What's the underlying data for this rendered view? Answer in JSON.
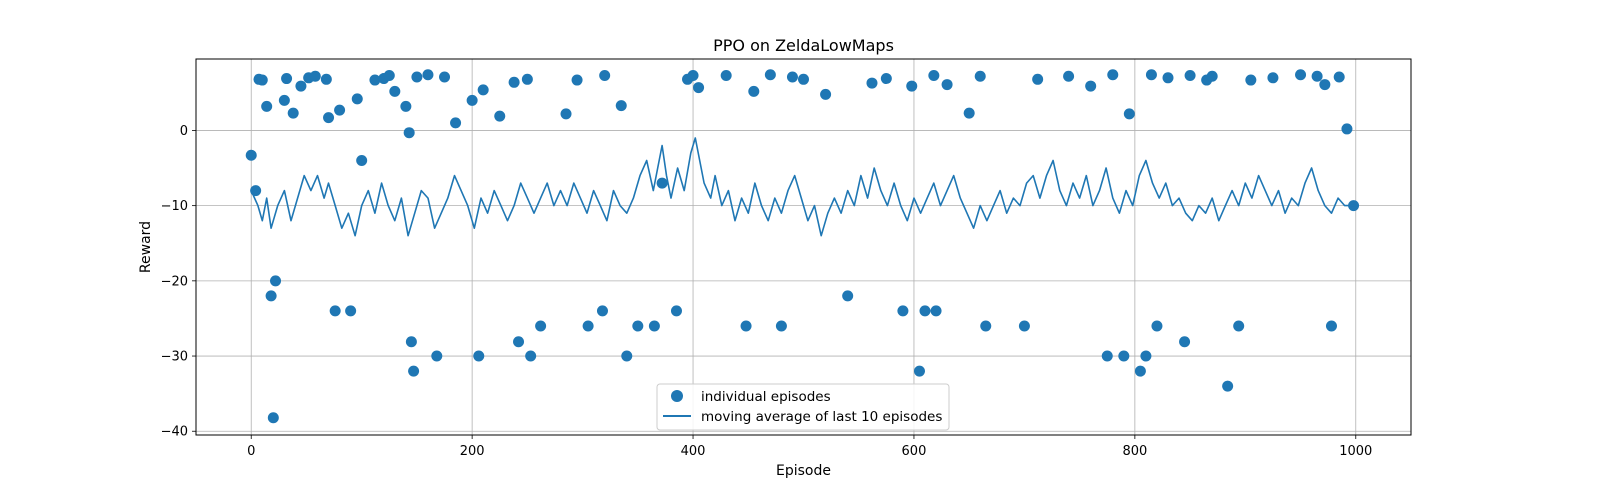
{
  "chart_data": {
    "type": "scatter",
    "title": "PPO on ZeldaLowMaps",
    "xlabel": "Episode",
    "ylabel": "Reward",
    "xlim": [
      -50,
      1050
    ],
    "ylim": [
      -40.5,
      9.5
    ],
    "xticks": [
      0,
      200,
      400,
      600,
      800,
      1000
    ],
    "yticks": [
      -40,
      -30,
      -20,
      -10,
      0
    ],
    "grid": true,
    "legend_position": "bottom-center",
    "color": "#1f77b4",
    "series": [
      {
        "name": "individual episodes",
        "kind": "scatter",
        "episode_count": 1000,
        "points": [
          [
            0,
            -3.3
          ],
          [
            4,
            -8
          ],
          [
            7,
            6.8
          ],
          [
            10,
            6.7
          ],
          [
            14,
            3.2
          ],
          [
            18,
            -22
          ],
          [
            20,
            -38.2
          ],
          [
            22,
            -20
          ],
          [
            30,
            4
          ],
          [
            32,
            6.9
          ],
          [
            38,
            2.3
          ],
          [
            45,
            5.9
          ],
          [
            52,
            7.0
          ],
          [
            58,
            7.2
          ],
          [
            68,
            6.8
          ],
          [
            70,
            1.7
          ],
          [
            76,
            -24
          ],
          [
            80,
            2.7
          ],
          [
            90,
            -24
          ],
          [
            96,
            4.2
          ],
          [
            100,
            -4.0
          ],
          [
            112,
            6.7
          ],
          [
            120,
            6.9
          ],
          [
            125,
            7.3
          ],
          [
            130,
            5.2
          ],
          [
            140,
            3.2
          ],
          [
            143,
            -0.3
          ],
          [
            145,
            -28.1
          ],
          [
            147,
            -32
          ],
          [
            150,
            7.1
          ],
          [
            160,
            7.4
          ],
          [
            168,
            -30
          ],
          [
            175,
            7.1
          ],
          [
            185,
            1.0
          ],
          [
            200,
            4.0
          ],
          [
            206,
            -30
          ],
          [
            210,
            5.4
          ],
          [
            225,
            1.9
          ],
          [
            238,
            6.4
          ],
          [
            242,
            -28.1
          ],
          [
            250,
            6.8
          ],
          [
            253,
            -30
          ],
          [
            262,
            -26
          ],
          [
            285,
            2.2
          ],
          [
            295,
            6.7
          ],
          [
            305,
            -26
          ],
          [
            318,
            -24
          ],
          [
            320,
            7.3
          ],
          [
            335,
            3.3
          ],
          [
            340,
            -30
          ],
          [
            350,
            -26
          ],
          [
            365,
            -26
          ],
          [
            372,
            -7
          ],
          [
            385,
            -24
          ],
          [
            395,
            6.8
          ],
          [
            400,
            7.3
          ],
          [
            405,
            5.7
          ],
          [
            430,
            7.3
          ],
          [
            448,
            -26
          ],
          [
            455,
            5.2
          ],
          [
            470,
            7.4
          ],
          [
            480,
            -26
          ],
          [
            490,
            7.1
          ],
          [
            500,
            6.8
          ],
          [
            520,
            4.8
          ],
          [
            540,
            -22
          ],
          [
            562,
            6.3
          ],
          [
            575,
            6.9
          ],
          [
            590,
            -24
          ],
          [
            598,
            5.9
          ],
          [
            605,
            -32
          ],
          [
            610,
            -24
          ],
          [
            618,
            7.3
          ],
          [
            620,
            -24
          ],
          [
            630,
            6.1
          ],
          [
            650,
            2.3
          ],
          [
            660,
            7.2
          ],
          [
            665,
            -26
          ],
          [
            700,
            -26
          ],
          [
            712,
            6.8
          ],
          [
            740,
            7.2
          ],
          [
            760,
            5.9
          ],
          [
            775,
            -30
          ],
          [
            780,
            7.4
          ],
          [
            790,
            -30
          ],
          [
            795,
            2.2
          ],
          [
            805,
            -32
          ],
          [
            810,
            -30
          ],
          [
            815,
            7.4
          ],
          [
            820,
            -26
          ],
          [
            830,
            7.0
          ],
          [
            845,
            -28.1
          ],
          [
            850,
            7.3
          ],
          [
            865,
            6.7
          ],
          [
            870,
            7.2
          ],
          [
            884,
            -34
          ],
          [
            894,
            -26
          ],
          [
            905,
            6.7
          ],
          [
            925,
            7.0
          ],
          [
            950,
            7.4
          ],
          [
            965,
            7.2
          ],
          [
            972,
            6.1
          ],
          [
            978,
            -26
          ],
          [
            985,
            7.1
          ],
          [
            992,
            0.2
          ],
          [
            998,
            -10
          ]
        ]
      },
      {
        "name": "moving average of last 10 episodes",
        "kind": "line",
        "points": [
          [
            0,
            -8
          ],
          [
            6,
            -10
          ],
          [
            10,
            -12
          ],
          [
            14,
            -9
          ],
          [
            18,
            -13
          ],
          [
            24,
            -10
          ],
          [
            30,
            -8
          ],
          [
            36,
            -12
          ],
          [
            42,
            -9
          ],
          [
            48,
            -6
          ],
          [
            54,
            -8
          ],
          [
            60,
            -6
          ],
          [
            66,
            -9
          ],
          [
            70,
            -7
          ],
          [
            76,
            -10
          ],
          [
            82,
            -13
          ],
          [
            88,
            -11
          ],
          [
            94,
            -14
          ],
          [
            100,
            -10
          ],
          [
            106,
            -8
          ],
          [
            112,
            -11
          ],
          [
            118,
            -7
          ],
          [
            124,
            -10
          ],
          [
            130,
            -12
          ],
          [
            136,
            -9
          ],
          [
            142,
            -14
          ],
          [
            148,
            -11
          ],
          [
            154,
            -8
          ],
          [
            160,
            -9
          ],
          [
            166,
            -13
          ],
          [
            172,
            -11
          ],
          [
            178,
            -9
          ],
          [
            184,
            -6
          ],
          [
            190,
            -8
          ],
          [
            196,
            -10
          ],
          [
            202,
            -13
          ],
          [
            208,
            -9
          ],
          [
            214,
            -11
          ],
          [
            220,
            -8
          ],
          [
            226,
            -10
          ],
          [
            232,
            -12
          ],
          [
            238,
            -10
          ],
          [
            244,
            -7
          ],
          [
            250,
            -9
          ],
          [
            256,
            -11
          ],
          [
            262,
            -9
          ],
          [
            268,
            -7
          ],
          [
            274,
            -10
          ],
          [
            280,
            -8
          ],
          [
            286,
            -10
          ],
          [
            292,
            -7
          ],
          [
            298,
            -9
          ],
          [
            304,
            -11
          ],
          [
            310,
            -8
          ],
          [
            316,
            -10
          ],
          [
            322,
            -12
          ],
          [
            328,
            -8
          ],
          [
            334,
            -10
          ],
          [
            340,
            -11
          ],
          [
            346,
            -9
          ],
          [
            352,
            -6
          ],
          [
            358,
            -4
          ],
          [
            364,
            -8
          ],
          [
            368,
            -5
          ],
          [
            372,
            -2
          ],
          [
            376,
            -6
          ],
          [
            380,
            -9
          ],
          [
            386,
            -5
          ],
          [
            392,
            -8
          ],
          [
            398,
            -3
          ],
          [
            402,
            -1
          ],
          [
            406,
            -4
          ],
          [
            410,
            -7
          ],
          [
            416,
            -9
          ],
          [
            420,
            -6
          ],
          [
            426,
            -10
          ],
          [
            432,
            -8
          ],
          [
            438,
            -12
          ],
          [
            444,
            -9
          ],
          [
            450,
            -11
          ],
          [
            456,
            -7
          ],
          [
            462,
            -10
          ],
          [
            468,
            -12
          ],
          [
            474,
            -9
          ],
          [
            480,
            -11
          ],
          [
            486,
            -8
          ],
          [
            492,
            -6
          ],
          [
            498,
            -9
          ],
          [
            504,
            -12
          ],
          [
            510,
            -10
          ],
          [
            516,
            -14
          ],
          [
            522,
            -11
          ],
          [
            528,
            -9
          ],
          [
            534,
            -11
          ],
          [
            540,
            -8
          ],
          [
            546,
            -10
          ],
          [
            552,
            -6
          ],
          [
            558,
            -9
          ],
          [
            564,
            -5
          ],
          [
            570,
            -8
          ],
          [
            576,
            -10
          ],
          [
            582,
            -7
          ],
          [
            588,
            -10
          ],
          [
            594,
            -12
          ],
          [
            600,
            -9
          ],
          [
            606,
            -11
          ],
          [
            612,
            -9
          ],
          [
            618,
            -7
          ],
          [
            624,
            -10
          ],
          [
            630,
            -8
          ],
          [
            636,
            -6
          ],
          [
            642,
            -9
          ],
          [
            648,
            -11
          ],
          [
            654,
            -13
          ],
          [
            660,
            -10
          ],
          [
            666,
            -12
          ],
          [
            672,
            -10
          ],
          [
            678,
            -8
          ],
          [
            684,
            -11
          ],
          [
            690,
            -9
          ],
          [
            696,
            -10
          ],
          [
            702,
            -7
          ],
          [
            708,
            -6
          ],
          [
            714,
            -9
          ],
          [
            720,
            -6
          ],
          [
            726,
            -4
          ],
          [
            732,
            -8
          ],
          [
            738,
            -10
          ],
          [
            744,
            -7
          ],
          [
            750,
            -9
          ],
          [
            756,
            -6
          ],
          [
            762,
            -10
          ],
          [
            768,
            -8
          ],
          [
            774,
            -5
          ],
          [
            780,
            -9
          ],
          [
            786,
            -11
          ],
          [
            792,
            -8
          ],
          [
            798,
            -10
          ],
          [
            804,
            -6
          ],
          [
            810,
            -4
          ],
          [
            816,
            -7
          ],
          [
            822,
            -9
          ],
          [
            828,
            -7
          ],
          [
            834,
            -10
          ],
          [
            840,
            -9
          ],
          [
            846,
            -11
          ],
          [
            852,
            -12
          ],
          [
            858,
            -10
          ],
          [
            864,
            -11
          ],
          [
            870,
            -9
          ],
          [
            876,
            -12
          ],
          [
            882,
            -10
          ],
          [
            888,
            -8
          ],
          [
            894,
            -10
          ],
          [
            900,
            -7
          ],
          [
            906,
            -9
          ],
          [
            912,
            -6
          ],
          [
            918,
            -8
          ],
          [
            924,
            -10
          ],
          [
            930,
            -8
          ],
          [
            936,
            -11
          ],
          [
            942,
            -9
          ],
          [
            948,
            -10
          ],
          [
            954,
            -7
          ],
          [
            960,
            -5
          ],
          [
            966,
            -8
          ],
          [
            972,
            -10
          ],
          [
            978,
            -11
          ],
          [
            984,
            -9
          ],
          [
            990,
            -10
          ],
          [
            996,
            -10
          ],
          [
            1000,
            -10
          ]
        ]
      }
    ]
  }
}
